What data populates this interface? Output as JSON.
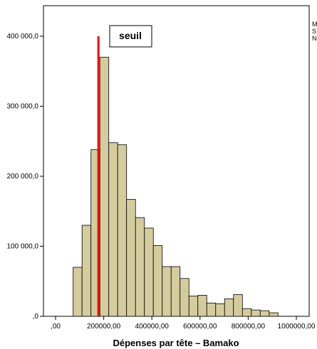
{
  "chart_data": {
    "type": "bar",
    "xlabel": "Dépenses par tête – Bamako",
    "ylabel": "",
    "xlim": [
      0,
      1000000
    ],
    "ylim": [
      0,
      450000
    ],
    "x_ticks": [
      0,
      200000,
      400000,
      600000,
      800000,
      1000000
    ],
    "x_tick_labels": [
      ",00",
      "200000,00",
      "400000,00",
      "600000,00",
      "800000,00",
      "1000000,00"
    ],
    "y_ticks": [
      0,
      100000,
      200000,
      300000,
      400000
    ],
    "y_tick_labels": [
      ",0",
      "100 000,0",
      "200 000,0",
      "300 000,0",
      "400 000,0"
    ],
    "bin_width": 37000,
    "x_start": 73000,
    "values": [
      70000,
      130000,
      238000,
      370000,
      248000,
      245000,
      167000,
      141000,
      126000,
      101000,
      71000,
      71000,
      54000,
      29000,
      30000,
      19000,
      18000,
      25000,
      31000,
      11000,
      9000,
      8000,
      5000
    ],
    "bar_color": "#d5cc9e",
    "bar_edge_color": "#000000",
    "threshold": {
      "x": 178000,
      "label": "seuil",
      "color": "#ff0000"
    },
    "legend_fragment": [
      "M",
      "S",
      "N"
    ]
  }
}
